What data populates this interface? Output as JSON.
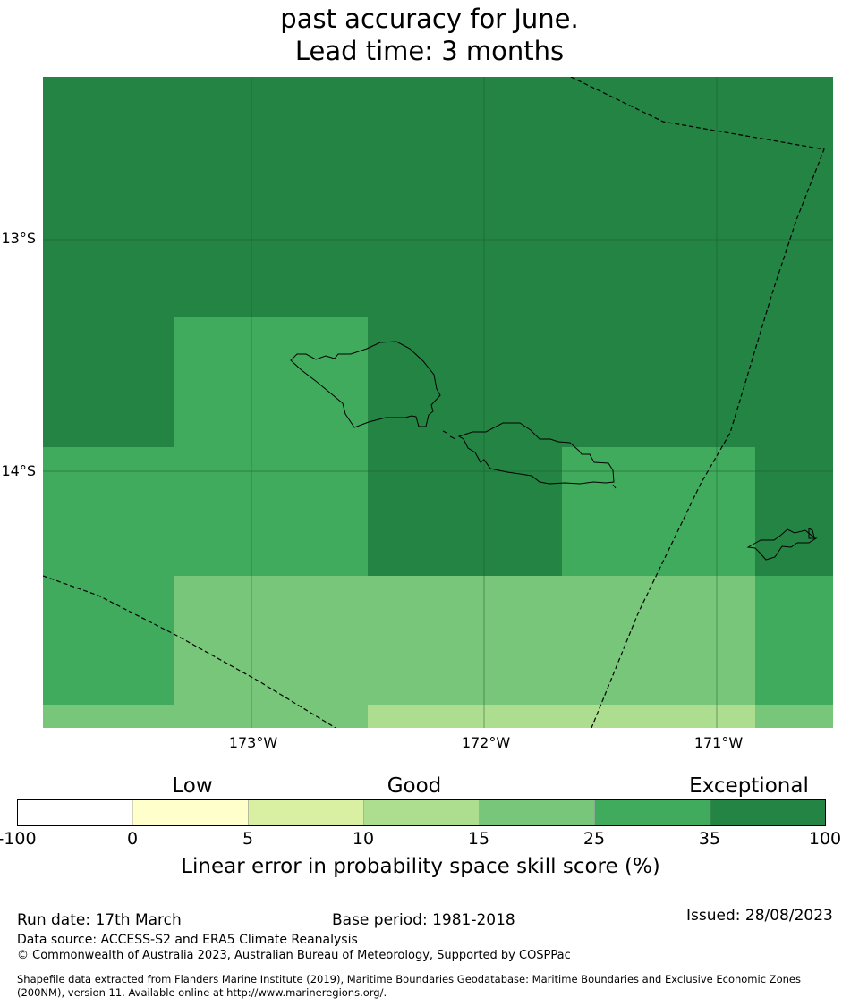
{
  "title": {
    "line1": "past accuracy for June.",
    "line2": "Lead time: 3 months"
  },
  "map": {
    "lat_labels": [
      "13°S",
      "14°S"
    ],
    "lon_labels": [
      "173°W",
      "172°W",
      "171°W"
    ],
    "skill_colors": {
      "band_15_25": "#78c679",
      "band_25_35": "#41ab5d",
      "band_35_100": "#238443",
      "band_10_15": "#addd8e"
    },
    "grid": true,
    "boundary_style": "dashed",
    "features": [
      "upolu-island",
      "savaii-island",
      "tutuila-island"
    ]
  },
  "legend": {
    "categories": [
      "Low",
      "Good",
      "Exceptional"
    ],
    "ticks": [
      "-100",
      "0",
      "5",
      "10",
      "15",
      "25",
      "35",
      "100"
    ],
    "colors": [
      "#ffffff",
      "#ffffcc",
      "#d9f0a3",
      "#addd8e",
      "#78c679",
      "#41ab5d",
      "#238443"
    ],
    "title": "Linear error in probability space skill score (%)"
  },
  "footer": {
    "run_date": "Run date: 17th March",
    "base_period": "Base period: 1981-2018",
    "issued": "Issued: 28/08/2023",
    "data_source": "Data source: ACCESS-S2 and ERA5 Climate Reanalysis",
    "copyright": "© Commonwealth of Australia 2023, Australian Bureau of Meteorology, Supported by COSPPac",
    "shapefile_line1": "Shapefile data extracted from Flanders Marine Institute (2019), Maritime Boundaries Geodatabase: Maritime Boundaries and Exclusive Economic Zones",
    "shapefile_line2": "(200NM), version 11. Available online at http://www.marineregions.org/."
  }
}
